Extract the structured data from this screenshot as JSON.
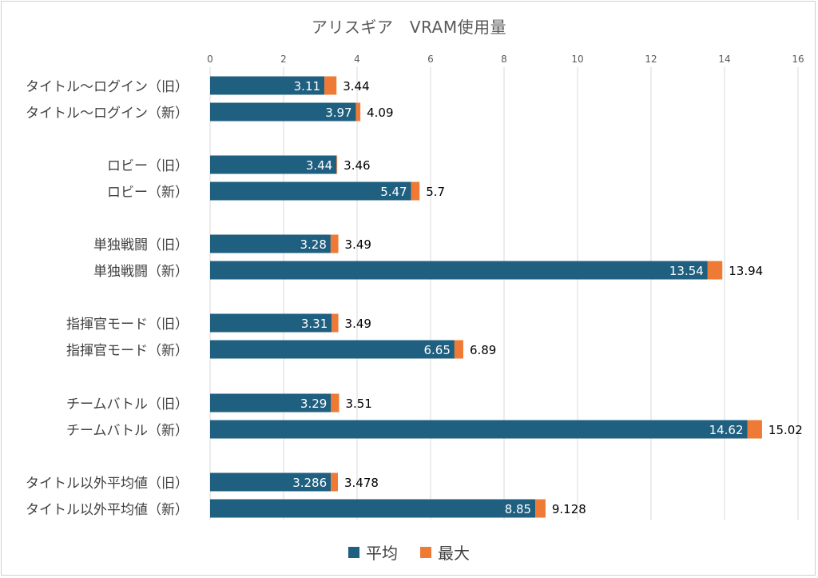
{
  "colors": {
    "avg": "#1f5f7f",
    "max": "#ee7a35",
    "grid": "#d9d9d9",
    "text": "#404040"
  },
  "chart_data": {
    "type": "bar",
    "orientation": "horizontal",
    "stacked": "overlay",
    "title": "アリスギア　VRAM使用量",
    "xlim": [
      0,
      16
    ],
    "xticks": [
      0,
      2,
      4,
      6,
      8,
      10,
      12,
      14,
      16
    ],
    "x_axis_position": "top",
    "grid": true,
    "legend_position": "bottom",
    "categories": [
      "タイトル〜ログイン（旧）",
      "タイトル〜ログイン（新）",
      "ロビー（旧）",
      "ロビー（新）",
      "単独戦闘（旧）",
      "単独戦闘（新）",
      "指揮官モード（旧）",
      "指揮官モード（新）",
      "チームバトル（旧）",
      "チームバトル（新）",
      "タイトル以外平均値（旧）",
      "タイトル以外平均値（新）"
    ],
    "series": [
      {
        "name": "平均",
        "values": [
          3.11,
          3.97,
          3.44,
          5.47,
          3.28,
          13.54,
          3.31,
          6.65,
          3.29,
          14.62,
          3.286,
          8.85
        ]
      },
      {
        "name": "最大",
        "values": [
          3.44,
          4.09,
          3.46,
          5.7,
          3.49,
          13.94,
          3.49,
          6.89,
          3.51,
          15.02,
          3.478,
          9.128
        ]
      }
    ],
    "max_labels": [
      "3.44",
      "4.09",
      "3.46",
      "5.7",
      "3.49",
      "13.94",
      "3.49",
      "6.89",
      "3.51",
      "15.02",
      "3.478",
      "9.128"
    ]
  }
}
